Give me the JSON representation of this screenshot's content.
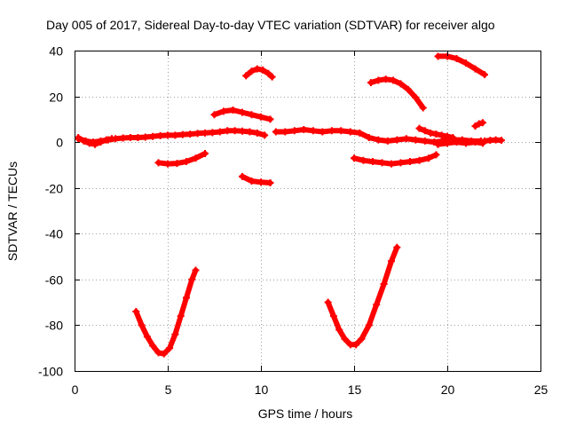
{
  "chart_data": {
    "type": "scatter",
    "title": "Day 005 of 2017, Sidereal Day-to-day VTEC variation (SDTVAR) for receiver algo",
    "xlabel": "GPS time / hours",
    "ylabel": "SDTVAR / TECUs",
    "xlim": [
      0,
      25
    ],
    "ylim": [
      -100,
      40
    ],
    "xticks": [
      0,
      5,
      10,
      15,
      20,
      25
    ],
    "yticks": [
      -100,
      -80,
      -60,
      -40,
      -20,
      0,
      20,
      40
    ],
    "grid": true,
    "legend": "none",
    "color": "#ff0000",
    "series": [
      {
        "x": [
          0.2,
          0.6,
          1.0,
          1.4,
          1.8,
          2.2,
          2.6,
          3.0,
          3.4,
          3.8,
          4.2,
          4.6,
          5.0,
          5.4,
          5.8,
          6.2,
          6.6,
          7.0,
          7.4,
          7.8,
          8.2,
          8.6,
          9.0,
          9.4,
          9.8,
          10.2
        ],
        "y": [
          1.5,
          0.5,
          0.0,
          0.5,
          1.0,
          1.5,
          1.8,
          2.0,
          2.0,
          2.2,
          2.5,
          2.8,
          3.0,
          3.0,
          3.3,
          3.5,
          3.8,
          4.0,
          4.2,
          4.5,
          5.0,
          5.0,
          4.8,
          4.5,
          4.0,
          3.0
        ]
      },
      {
        "x": [
          10.8,
          11.3,
          11.8,
          12.3,
          12.8,
          13.3,
          13.8,
          14.3,
          14.8,
          15.3,
          15.8,
          16.3,
          16.8,
          17.3,
          17.8,
          18.3,
          18.8,
          19.3,
          19.8,
          20.3,
          20.8,
          21.3,
          21.8
        ],
        "y": [
          4.5,
          4.5,
          5.0,
          5.5,
          5.0,
          4.5,
          5.0,
          5.0,
          4.5,
          4.0,
          2.0,
          1.0,
          0.5,
          1.0,
          1.5,
          1.0,
          0.5,
          0.0,
          0.5,
          1.0,
          1.0,
          0.5,
          0.5
        ]
      },
      {
        "x": [
          22.0,
          22.3,
          22.6,
          22.9
        ],
        "y": [
          0.5,
          0.8,
          1.0,
          0.8
        ]
      },
      {
        "x": [
          0.2,
          0.5,
          0.8,
          1.1,
          1.4,
          1.7,
          2.0
        ],
        "y": [
          2.0,
          0.5,
          -0.5,
          -1.0,
          0.0,
          1.0,
          1.5
        ]
      },
      {
        "x": [
          19.5,
          20.0,
          20.5,
          21.0,
          21.5,
          21.9
        ],
        "y": [
          -1.0,
          -0.5,
          0.0,
          -0.5,
          0.0,
          -0.5
        ]
      },
      {
        "x": [
          4.5,
          5.0,
          5.5,
          6.0,
          6.5,
          7.0
        ],
        "y": [
          -9.0,
          -9.5,
          -9.3,
          -8.5,
          -7.0,
          -5.0
        ]
      },
      {
        "x": [
          7.5,
          8.0,
          8.5,
          9.0,
          9.5,
          10.0,
          10.5
        ],
        "y": [
          12.0,
          13.5,
          14.0,
          13.0,
          12.0,
          11.0,
          10.0
        ]
      },
      {
        "x": [
          9.0,
          9.5,
          10.0,
          10.5
        ],
        "y": [
          -15.0,
          -17.0,
          -17.5,
          -17.8
        ]
      },
      {
        "x": [
          9.2,
          9.5,
          9.8,
          10.1,
          10.4,
          10.6
        ],
        "y": [
          29.0,
          31.0,
          32.0,
          31.5,
          30.0,
          28.5
        ]
      },
      {
        "x": [
          15.0,
          15.5,
          16.0,
          16.5,
          17.0,
          17.5,
          18.0,
          18.5,
          19.0,
          19.4
        ],
        "y": [
          -7.0,
          -8.0,
          -8.5,
          -9.0,
          -9.5,
          -9.0,
          -8.5,
          -8.0,
          -7.0,
          -5.5
        ]
      },
      {
        "x": [
          15.9,
          16.3,
          16.7,
          17.1,
          17.5,
          17.9,
          18.3,
          18.7
        ],
        "y": [
          26.0,
          27.0,
          27.5,
          27.0,
          25.5,
          23.0,
          19.5,
          15.0
        ]
      },
      {
        "x": [
          18.5,
          18.8,
          19.1,
          19.4,
          19.7,
          20.0,
          20.3
        ],
        "y": [
          6.0,
          5.0,
          4.0,
          3.5,
          3.0,
          2.5,
          2.0
        ]
      },
      {
        "x": [
          21.5,
          21.7,
          21.9
        ],
        "y": [
          7.0,
          8.0,
          8.5
        ]
      },
      {
        "x": [
          19.5,
          20.0,
          20.5,
          21.0,
          21.5,
          22.0
        ],
        "y": [
          37.5,
          37.5,
          36.5,
          34.5,
          32.0,
          29.5
        ]
      },
      {
        "x": [
          3.3,
          3.6,
          3.9,
          4.2,
          4.5,
          4.8,
          5.1,
          5.4,
          5.7,
          6.0,
          6.3,
          6.5
        ],
        "y": [
          -74.0,
          -80.0,
          -85.0,
          -89.0,
          -92.0,
          -92.5,
          -90.0,
          -84.0,
          -76.0,
          -68.0,
          -60.0,
          -56.0
        ]
      },
      {
        "x": [
          13.6,
          13.9,
          14.2,
          14.5,
          14.8,
          15.1,
          15.4,
          15.8,
          16.2,
          16.6,
          17.0,
          17.3
        ],
        "y": [
          -70.0,
          -76.0,
          -82.0,
          -86.0,
          -88.5,
          -88.5,
          -86.0,
          -80.0,
          -71.0,
          -62.0,
          -52.0,
          -46.0
        ]
      }
    ]
  }
}
